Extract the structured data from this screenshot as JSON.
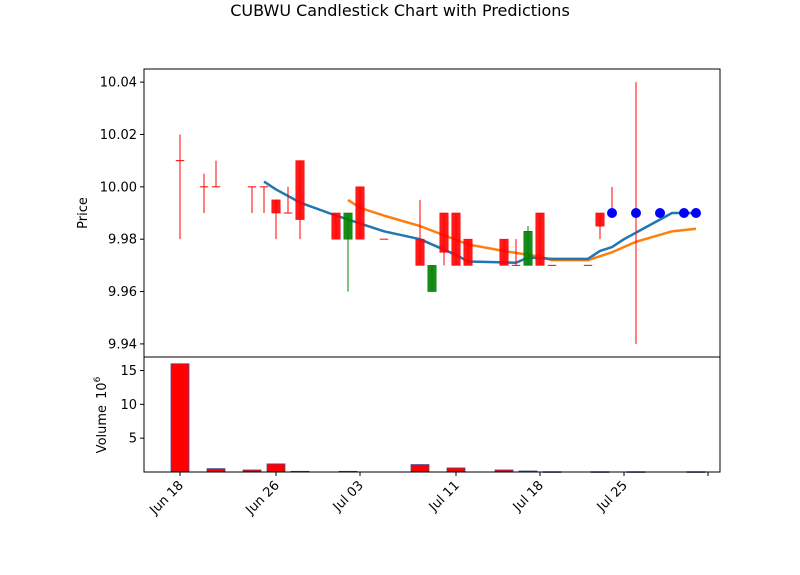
{
  "chart_data": {
    "type": "candlestick",
    "title": "CUBWU Candlestick Chart with Predictions",
    "price_panel": {
      "ylabel": "Price",
      "ylim": [
        9.935,
        10.045
      ],
      "yticks": [
        "9.94",
        "9.96",
        "9.98",
        "10.00",
        "10.02",
        "10.04"
      ],
      "colors": {
        "up": "#008000",
        "down": "#ff0000",
        "ma_short": "#1f77b4",
        "ma_long": "#ff7f0e",
        "prediction": "#0000ff"
      },
      "candles": [
        {
          "date": "2024-06-18",
          "open": 10.01,
          "high": 10.02,
          "low": 9.98,
          "close": 10.01
        },
        {
          "date": "2024-06-20",
          "open": 10.0,
          "high": 10.005,
          "low": 9.99,
          "close": 10.0
        },
        {
          "date": "2024-06-21",
          "open": 10.0,
          "high": 10.01,
          "low": 10.0,
          "close": 10.0
        },
        {
          "date": "2024-06-24",
          "open": 10.0,
          "high": 10.0,
          "low": 9.99,
          "close": 10.0
        },
        {
          "date": "2024-06-25",
          "open": 10.0,
          "high": 10.0,
          "low": 9.99,
          "close": 10.0
        },
        {
          "date": "2024-06-26",
          "open": 9.995,
          "high": 9.995,
          "low": 9.98,
          "close": 9.99
        },
        {
          "date": "2024-06-27",
          "open": 9.99,
          "high": 10.0,
          "low": 9.99,
          "close": 9.99
        },
        {
          "date": "2024-06-28",
          "open": 10.01,
          "high": 10.01,
          "low": 9.98,
          "close": 9.9875
        },
        {
          "date": "2024-07-01",
          "open": 9.99,
          "high": 9.99,
          "low": 9.98,
          "close": 9.98
        },
        {
          "date": "2024-07-02",
          "open": 9.98,
          "high": 9.99,
          "low": 9.96,
          "close": 9.99
        },
        {
          "date": "2024-07-03",
          "open": 10.0,
          "high": 10.0,
          "low": 9.98,
          "close": 9.98
        },
        {
          "date": "2024-07-05",
          "open": 9.98,
          "high": 9.98,
          "low": 9.98,
          "close": 9.98
        },
        {
          "date": "2024-07-08",
          "open": 9.98,
          "high": 9.995,
          "low": 9.97,
          "close": 9.97
        },
        {
          "date": "2024-07-09",
          "open": 9.96,
          "high": 9.97,
          "low": 9.96,
          "close": 9.97
        },
        {
          "date": "2024-07-10",
          "open": 9.99,
          "high": 9.99,
          "low": 9.97,
          "close": 9.975
        },
        {
          "date": "2024-07-11",
          "open": 9.99,
          "high": 9.99,
          "low": 9.97,
          "close": 9.97
        },
        {
          "date": "2024-07-12",
          "open": 9.98,
          "high": 9.98,
          "low": 9.97,
          "close": 9.97
        },
        {
          "date": "2024-07-15",
          "open": 9.98,
          "high": 9.98,
          "low": 9.97,
          "close": 9.97
        },
        {
          "date": "2024-07-16",
          "open": 9.97,
          "high": 9.98,
          "low": 9.97,
          "close": 9.97
        },
        {
          "date": "2024-07-17",
          "open": 9.97,
          "high": 9.985,
          "low": 9.97,
          "close": 9.983
        },
        {
          "date": "2024-07-18",
          "open": 9.99,
          "high": 9.99,
          "low": 9.97,
          "close": 9.97
        },
        {
          "date": "2024-07-19",
          "open": 9.97,
          "high": 9.97,
          "low": 9.97,
          "close": 9.97
        },
        {
          "date": "2024-07-22",
          "open": 9.97,
          "high": 9.97,
          "low": 9.97,
          "close": 9.97
        },
        {
          "date": "2024-07-23",
          "open": 9.99,
          "high": 9.99,
          "low": 9.98,
          "close": 9.985
        },
        {
          "date": "2024-07-24",
          "open": 9.99,
          "high": 10.0,
          "low": 9.99,
          "close": 9.99
        },
        {
          "date": "2024-07-26",
          "open": 9.99,
          "high": 10.04,
          "low": 9.94,
          "close": 9.99
        }
      ],
      "ma_short": [
        {
          "date": "2024-06-25",
          "value": 10.002
        },
        {
          "date": "2024-06-26",
          "value": 9.999
        },
        {
          "date": "2024-06-28",
          "value": 9.994
        },
        {
          "date": "2024-07-01",
          "value": 9.989
        },
        {
          "date": "2024-07-03",
          "value": 9.986
        },
        {
          "date": "2024-07-05",
          "value": 9.983
        },
        {
          "date": "2024-07-08",
          "value": 9.98
        },
        {
          "date": "2024-07-09",
          "value": 9.978
        },
        {
          "date": "2024-07-11",
          "value": 9.974
        },
        {
          "date": "2024-07-12",
          "value": 9.9715
        },
        {
          "date": "2024-07-16",
          "value": 9.971
        },
        {
          "date": "2024-07-17",
          "value": 9.973
        },
        {
          "date": "2024-07-19",
          "value": 9.9725
        },
        {
          "date": "2024-07-22",
          "value": 9.9725
        },
        {
          "date": "2024-07-23",
          "value": 9.9755
        },
        {
          "date": "2024-07-24",
          "value": 9.977
        },
        {
          "date": "2024-07-25",
          "value": 9.98
        },
        {
          "date": "2024-07-29",
          "value": 9.99
        },
        {
          "date": "2024-07-31",
          "value": 9.99
        }
      ],
      "ma_long": [
        {
          "date": "2024-07-02",
          "value": 9.995
        },
        {
          "date": "2024-07-03",
          "value": 9.992
        },
        {
          "date": "2024-07-05",
          "value": 9.989
        },
        {
          "date": "2024-07-08",
          "value": 9.985
        },
        {
          "date": "2024-07-10",
          "value": 9.9815
        },
        {
          "date": "2024-07-12",
          "value": 9.978
        },
        {
          "date": "2024-07-15",
          "value": 9.9755
        },
        {
          "date": "2024-07-18",
          "value": 9.9733
        },
        {
          "date": "2024-07-19",
          "value": 9.972
        },
        {
          "date": "2024-07-22",
          "value": 9.972
        },
        {
          "date": "2024-07-24",
          "value": 9.975
        },
        {
          "date": "2024-07-26",
          "value": 9.979
        },
        {
          "date": "2024-07-29",
          "value": 9.983
        },
        {
          "date": "2024-07-31",
          "value": 9.984
        }
      ],
      "predictions": [
        {
          "date": "2024-07-24",
          "value": 9.99
        },
        {
          "date": "2024-07-26",
          "value": 9.99
        },
        {
          "date": "2024-07-28",
          "value": 9.99
        },
        {
          "date": "2024-07-30",
          "value": 9.99
        },
        {
          "date": "2024-07-31",
          "value": 9.99
        }
      ]
    },
    "volume_panel": {
      "ylabel": "Volume",
      "exponent_label": "10",
      "exponent_power": "6",
      "ylim": [
        0,
        17
      ],
      "yticks": [
        "5",
        "10",
        "15"
      ],
      "bars": [
        {
          "date": "2024-06-18",
          "value": 16.0,
          "color": "#ff0000"
        },
        {
          "date": "2024-06-21",
          "value": 0.5,
          "color": "#ff0000"
        },
        {
          "date": "2024-06-24",
          "value": 0.3,
          "color": "#ff0000"
        },
        {
          "date": "2024-06-26",
          "value": 1.2,
          "color": "#ff0000"
        },
        {
          "date": "2024-06-28",
          "value": 0.1,
          "color": "#ff0000"
        },
        {
          "date": "2024-07-02",
          "value": 0.1,
          "color": "#008000"
        },
        {
          "date": "2024-07-08",
          "value": 1.1,
          "color": "#ff0000"
        },
        {
          "date": "2024-07-11",
          "value": 0.6,
          "color": "#ff0000"
        },
        {
          "date": "2024-07-15",
          "value": 0.3,
          "color": "#ff0000"
        },
        {
          "date": "2024-07-17",
          "value": 0.15,
          "color": "#008000"
        },
        {
          "date": "2024-07-19",
          "value": 0.05,
          "color": "#ff0000"
        },
        {
          "date": "2024-07-23",
          "value": 0.05,
          "color": "#ff0000"
        },
        {
          "date": "2024-07-26",
          "value": 0.05,
          "color": "#ff0000"
        },
        {
          "date": "2024-07-31",
          "value": 0.05,
          "color": "#ff0000"
        }
      ]
    },
    "x_axis": {
      "range": [
        "2024-06-15",
        "2024-08-02"
      ],
      "ticks": [
        {
          "date": "2024-06-18",
          "label": "Jun 18"
        },
        {
          "date": "2024-06-26",
          "label": "Jun 26"
        },
        {
          "date": "2024-07-03",
          "label": "Jul 03"
        },
        {
          "date": "2024-07-11",
          "label": "Jul 11"
        },
        {
          "date": "2024-07-18",
          "label": "Jul 18"
        },
        {
          "date": "2024-07-25",
          "label": "Jul 25"
        },
        {
          "date": "2024-08-01",
          "label": ""
        }
      ]
    }
  }
}
